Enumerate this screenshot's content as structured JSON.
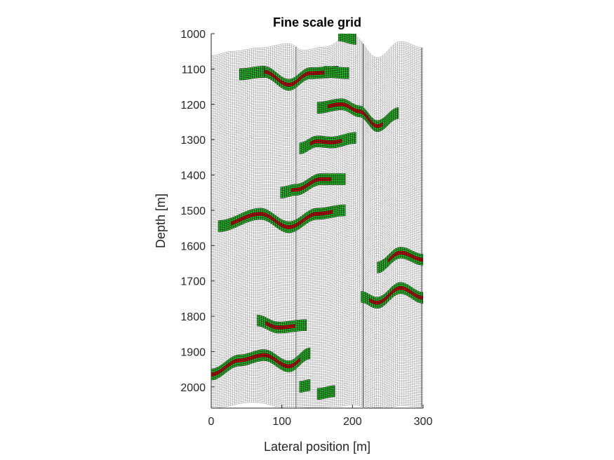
{
  "chart_data": {
    "type": "mesh",
    "title": "Fine scale grid",
    "xlabel": "Lateral position [m]",
    "ylabel": "Depth [m]",
    "xlim": [
      0,
      300
    ],
    "ylim": [
      1000,
      2060
    ],
    "y_reversed": true,
    "x_ticks": [
      0,
      100,
      200,
      300
    ],
    "y_ticks": [
      1000,
      1100,
      1200,
      1300,
      1400,
      1500,
      1600,
      1700,
      1800,
      1900,
      2000
    ],
    "grid_columns": 100,
    "grid_layers": 200,
    "top_surface_depth": [
      [
        0,
        1062
      ],
      [
        30,
        1050
      ],
      [
        70,
        1040
      ],
      [
        110,
        1028
      ],
      [
        130,
        1047
      ],
      [
        160,
        1038
      ],
      [
        200,
        1003
      ],
      [
        235,
        1068
      ],
      [
        268,
        1022
      ],
      [
        300,
        1040
      ]
    ],
    "bottom_surface_depth": [
      [
        0,
        2060
      ],
      [
        60,
        2043
      ],
      [
        110,
        2060
      ],
      [
        150,
        2058
      ],
      [
        185,
        2054
      ],
      [
        200,
        2050
      ],
      [
        235,
        2068
      ],
      [
        268,
        2053
      ],
      [
        300,
        2057
      ]
    ],
    "faults_x": [
      120,
      215,
      298
    ],
    "colors": {
      "grid_line": "#8c8c8c",
      "well_cells": "#22c222",
      "perforated_cells": "#cc0000"
    },
    "series": [
      {
        "name": "",
        "x": [
          40,
          75,
          110,
          140,
          180
        ],
        "depth": [
          1115,
          1108,
          1145,
          1112,
          1108
        ],
        "perforated": [
          58,
          180
        ],
        "color": "#cc0000"
      },
      {
        "name": "",
        "x": [
          150,
          185,
          210,
          235,
          265
        ],
        "depth": [
          1210,
          1200,
          1220,
          1262,
          1225
        ],
        "perforated": [
          165,
          245
        ],
        "color": "#cc0000"
      },
      {
        "name": "",
        "x": [
          125,
          150,
          170,
          205
        ],
        "depth": [
          1325,
          1305,
          1308,
          1295
        ],
        "perforated": [
          140,
          185
        ],
        "color": "#cc0000"
      },
      {
        "name": "",
        "x": [
          98,
          120,
          155,
          190
        ],
        "depth": [
          1450,
          1442,
          1412,
          1412
        ],
        "perforated": [
          112,
          172
        ],
        "color": "#cc0000"
      },
      {
        "name": "",
        "x": [
          10,
          70,
          110,
          150,
          190
        ],
        "depth": [
          1545,
          1510,
          1548,
          1510,
          1500
        ],
        "perforated": [
          28,
          172
        ],
        "color": "#cc0000"
      },
      {
        "name": "",
        "x": [
          235,
          268,
          300
        ],
        "depth": [
          1662,
          1620,
          1640
        ],
        "perforated": [
          250,
          300
        ],
        "color": "#cc0000"
      },
      {
        "name": "",
        "x": [
          212,
          235,
          268,
          300
        ],
        "depth": [
          1745,
          1762,
          1720,
          1748
        ],
        "perforated": [
          222,
          300
        ],
        "color": "#cc0000"
      },
      {
        "name": "",
        "x": [
          65,
          95,
          135
        ],
        "depth": [
          1812,
          1832,
          1825
        ],
        "perforated": [
          75,
          120
        ],
        "color": "#cc0000"
      },
      {
        "name": "",
        "x": [
          0,
          40,
          75,
          110,
          140
        ],
        "depth": [
          1965,
          1925,
          1910,
          1942,
          1905
        ],
        "perforated": [
          0,
          128
        ],
        "color": "#cc0000"
      }
    ],
    "well_blocks": [
      {
        "x": [
          40,
          75
        ],
        "depth": [
          1115,
          1108
        ]
      },
      {
        "x": [
          160,
          195
        ],
        "depth": [
          1108,
          1112
        ]
      },
      {
        "x": [
          180,
          205
        ],
        "depth": [
          1005,
          1015
        ]
      },
      {
        "x": [
          125,
          140
        ],
        "depth": [
          2000,
          1995
        ]
      },
      {
        "x": [
          150,
          175
        ],
        "depth": [
          2020,
          2012
        ]
      }
    ]
  }
}
